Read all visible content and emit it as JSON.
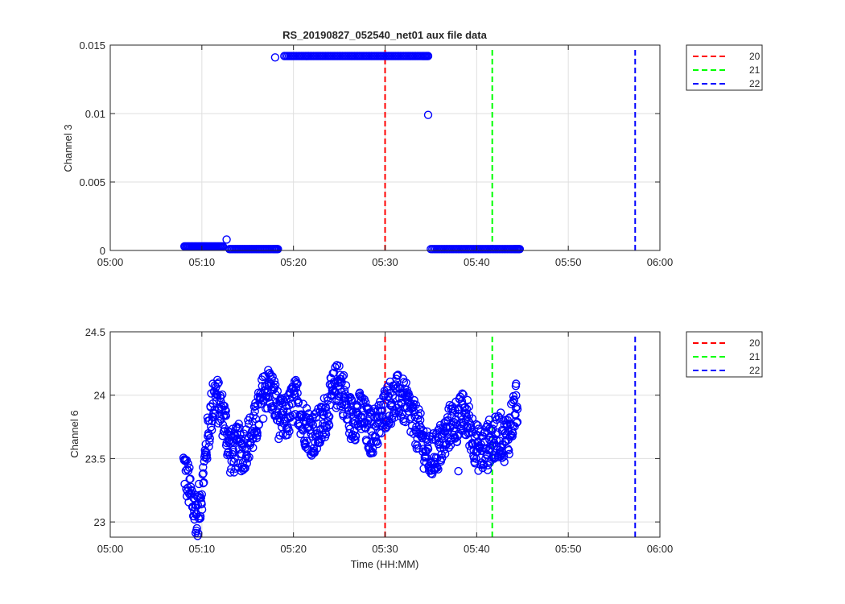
{
  "figure": {
    "title": "RS_20190827_052540_net01 aux file data",
    "xlabel": "Time (HH:MM)",
    "colors": {
      "points": "#0000ff",
      "line20": "#ff0000",
      "line21": "#00ff00",
      "line22": "#0000ff"
    }
  },
  "chart_data": [
    {
      "type": "scatter",
      "title": "RS_20190827_052540_net01 aux file data",
      "xlabel": "",
      "ylabel": "Channel 3",
      "xlim": [
        "05:00",
        "06:00"
      ],
      "ylim": [
        0,
        0.015
      ],
      "x_ticks": [
        "05:00",
        "05:10",
        "05:20",
        "05:30",
        "05:40",
        "05:50",
        "06:00"
      ],
      "y_ticks": [
        "0",
        "0.005",
        "0.01",
        "0.015"
      ],
      "grid": true,
      "legend_position": "outside-top-right",
      "vertical_lines": [
        {
          "name": "20",
          "x": "05:30",
          "color": "#ff0000",
          "style": "dashed"
        },
        {
          "name": "21",
          "x": "05:41.7",
          "color": "#00ff00",
          "style": "dashed"
        },
        {
          "name": "22",
          "x": "05:57.3",
          "color": "#0000ff",
          "style": "dashed"
        }
      ],
      "series": [
        {
          "marker": "circle",
          "color": "#0000ff",
          "points": [
            [
              "05:08.1",
              0.0003
            ],
            [
              "05:08.8",
              0.0003
            ],
            [
              "05:09.5",
              0.0003
            ],
            [
              "05:10.2",
              0.0003
            ],
            [
              "05:10.9",
              0.0003
            ],
            [
              "05:11.6",
              0.0003
            ],
            [
              "05:12.3",
              0.0003
            ],
            [
              "05:12.7",
              0.0008
            ],
            [
              "05:13.0",
              0.0001
            ],
            [
              "05:13.8",
              0.0001
            ],
            [
              "05:14.6",
              0.0001
            ],
            [
              "05:15.4",
              0.0001
            ],
            [
              "05:16.2",
              0.0001
            ],
            [
              "05:17.0",
              0.0001
            ],
            [
              "05:17.8",
              0.0001
            ],
            [
              "05:18.3",
              0.0001
            ],
            [
              "05:18.0",
              0.0141
            ],
            [
              "05:19.0",
              0.0142
            ],
            [
              "05:20.0",
              0.0142
            ],
            [
              "05:21.0",
              0.0142
            ],
            [
              "05:22.0",
              0.0142
            ],
            [
              "05:23.0",
              0.0142
            ],
            [
              "05:24.0",
              0.0142
            ],
            [
              "05:25.0",
              0.0142
            ],
            [
              "05:26.0",
              0.0142
            ],
            [
              "05:27.0",
              0.0142
            ],
            [
              "05:28.0",
              0.0142
            ],
            [
              "05:29.0",
              0.0142
            ],
            [
              "05:30.0",
              0.0142
            ],
            [
              "05:31.0",
              0.0142
            ],
            [
              "05:32.0",
              0.0142
            ],
            [
              "05:33.0",
              0.0142
            ],
            [
              "05:34.0",
              0.0142
            ],
            [
              "05:34.7",
              0.0142
            ],
            [
              "05:34.7",
              0.0099
            ],
            [
              "05:35.0",
              0.0001
            ],
            [
              "05:36.0",
              0.0001
            ],
            [
              "05:37.0",
              0.0001
            ],
            [
              "05:38.0",
              0.0001
            ],
            [
              "05:39.0",
              0.0001
            ],
            [
              "05:40.0",
              0.0001
            ],
            [
              "05:41.0",
              0.0001
            ],
            [
              "05:42.0",
              0.0001
            ],
            [
              "05:43.0",
              0.0001
            ],
            [
              "05:44.0",
              0.0001
            ],
            [
              "05:44.7",
              0.0001
            ]
          ]
        }
      ]
    },
    {
      "type": "scatter",
      "title": "",
      "xlabel": "Time (HH:MM)",
      "ylabel": "Channel 6",
      "xlim": [
        "05:00",
        "06:00"
      ],
      "ylim": [
        22.88,
        24.5
      ],
      "x_ticks": [
        "05:00",
        "05:10",
        "05:20",
        "05:30",
        "05:40",
        "05:50",
        "06:00"
      ],
      "y_ticks": [
        "23",
        "23.5",
        "24",
        "24.5"
      ],
      "grid": true,
      "legend_position": "outside-top-right",
      "vertical_lines": [
        {
          "name": "20",
          "x": "05:30",
          "color": "#ff0000",
          "style": "dashed"
        },
        {
          "name": "21",
          "x": "05:41.7",
          "color": "#00ff00",
          "style": "dashed"
        },
        {
          "name": "22",
          "x": "05:57.3",
          "color": "#0000ff",
          "style": "dashed"
        }
      ],
      "series": [
        {
          "marker": "circle",
          "color": "#0000ff",
          "profile": [
            [
              "05:08.0",
              23.45
            ],
            [
              "05:08.5",
              23.3
            ],
            [
              "05:09.0",
              23.15
            ],
            [
              "05:09.5",
              23.05
            ],
            [
              "05:10.0",
              23.25
            ],
            [
              "05:10.5",
              23.6
            ],
            [
              "05:11.0",
              23.85
            ],
            [
              "05:11.5",
              24.0
            ],
            [
              "05:12.0",
              23.9
            ],
            [
              "05:12.5",
              23.8
            ],
            [
              "05:13.0",
              23.6
            ],
            [
              "05:13.5",
              23.55
            ],
            [
              "05:14.0",
              23.6
            ],
            [
              "05:14.5",
              23.55
            ],
            [
              "05:15.0",
              23.65
            ],
            [
              "05:15.5",
              23.7
            ],
            [
              "05:16.0",
              23.8
            ],
            [
              "05:16.5",
              23.95
            ],
            [
              "05:17.0",
              24.05
            ],
            [
              "05:17.5",
              24.05
            ],
            [
              "05:18.0",
              23.95
            ],
            [
              "05:18.5",
              23.8
            ],
            [
              "05:19.0",
              23.8
            ],
            [
              "05:19.5",
              23.85
            ],
            [
              "05:20.0",
              23.95
            ],
            [
              "05:20.5",
              23.95
            ],
            [
              "05:21.0",
              23.8
            ],
            [
              "05:21.5",
              23.75
            ],
            [
              "05:22.0",
              23.7
            ],
            [
              "05:22.5",
              23.7
            ],
            [
              "05:23.0",
              23.75
            ],
            [
              "05:23.5",
              23.85
            ],
            [
              "05:24.0",
              23.95
            ],
            [
              "05:24.5",
              24.05
            ],
            [
              "05:25.0",
              24.1
            ],
            [
              "05:25.5",
              24.0
            ],
            [
              "05:26.0",
              23.85
            ],
            [
              "05:26.5",
              23.8
            ],
            [
              "05:27.0",
              23.85
            ],
            [
              "05:27.5",
              23.85
            ],
            [
              "05:28.0",
              23.75
            ],
            [
              "05:28.5",
              23.7
            ],
            [
              "05:29.0",
              23.75
            ],
            [
              "05:29.5",
              23.8
            ],
            [
              "05:30.0",
              23.9
            ],
            [
              "05:30.5",
              23.95
            ],
            [
              "05:31.0",
              23.95
            ],
            [
              "05:31.5",
              24.0
            ],
            [
              "05:32.0",
              23.95
            ],
            [
              "05:32.5",
              23.9
            ],
            [
              "05:33.0",
              23.8
            ],
            [
              "05:33.5",
              23.75
            ],
            [
              "05:34.0",
              23.65
            ],
            [
              "05:34.5",
              23.55
            ],
            [
              "05:35.0",
              23.5
            ],
            [
              "05:35.5",
              23.55
            ],
            [
              "05:36.0",
              23.6
            ],
            [
              "05:36.5",
              23.65
            ],
            [
              "05:37.0",
              23.75
            ],
            [
              "05:37.5",
              23.8
            ],
            [
              "05:38.0",
              23.8
            ],
            [
              "05:38.5",
              23.85
            ],
            [
              "05:39.0",
              23.8
            ],
            [
              "05:39.5",
              23.7
            ],
            [
              "05:40.0",
              23.6
            ],
            [
              "05:40.5",
              23.55
            ],
            [
              "05:41.0",
              23.6
            ],
            [
              "05:41.5",
              23.65
            ],
            [
              "05:42.0",
              23.65
            ],
            [
              "05:42.5",
              23.7
            ],
            [
              "05:43.0",
              23.65
            ],
            [
              "05:43.5",
              23.7
            ],
            [
              "05:44.0",
              23.85
            ],
            [
              "05:44.5",
              23.95
            ]
          ],
          "spread": 0.18,
          "outliers": [
            [
              "05:09.4",
              22.93
            ],
            [
              "05:09.6",
              22.91
            ],
            [
              "05:09.2",
              23.02
            ],
            [
              "05:25.0",
              24.23
            ],
            [
              "05:17.3",
              24.17
            ],
            [
              "05:11.2",
              24.09
            ],
            [
              "05:13.1",
              23.39
            ],
            [
              "05:38.0",
              23.4
            ],
            [
              "05:41.2",
              23.41
            ],
            [
              "05:44.3",
              24.09
            ]
          ]
        }
      ]
    }
  ],
  "legend": {
    "entries": [
      {
        "label": "20",
        "color": "#ff0000"
      },
      {
        "label": "21",
        "color": "#00ff00"
      },
      {
        "label": "22",
        "color": "#0000ff"
      }
    ]
  }
}
